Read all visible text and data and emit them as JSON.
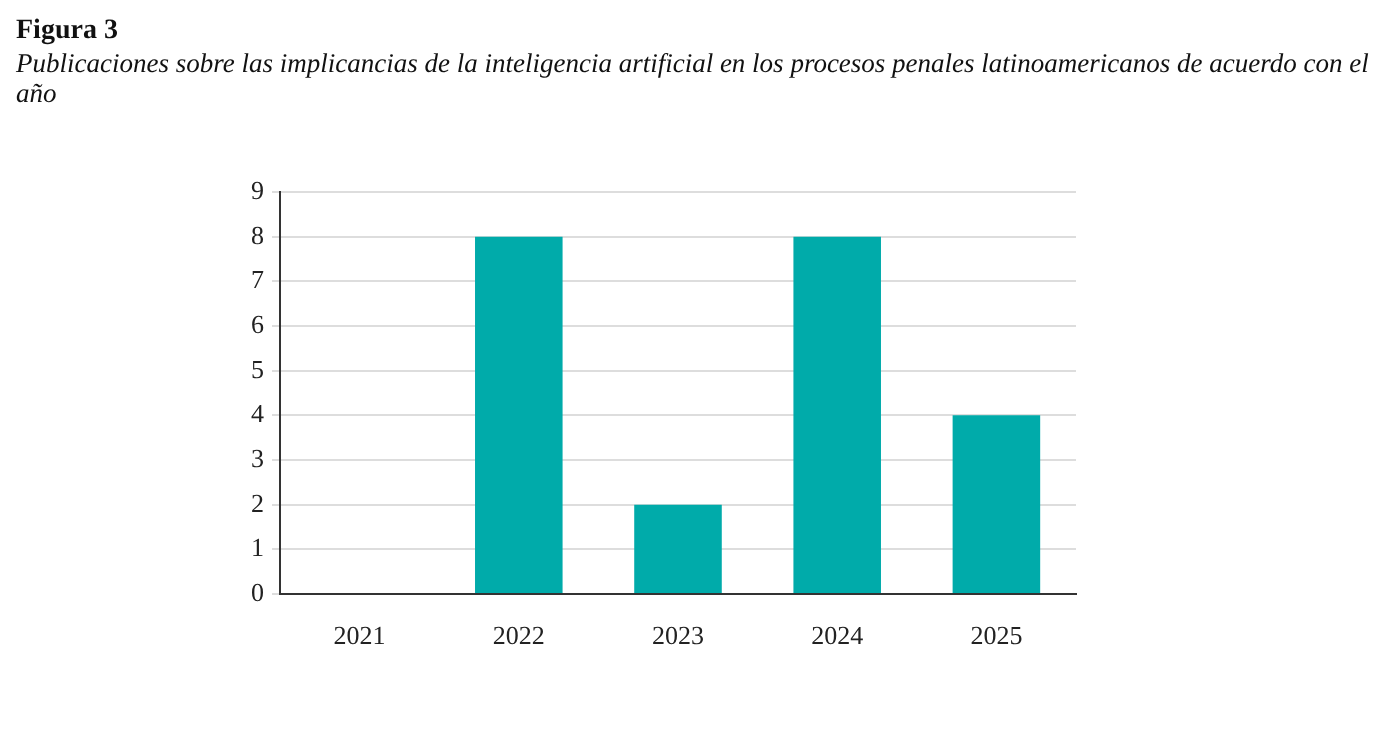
{
  "chart_data": {
    "type": "bar",
    "title": "Figura 3",
    "subtitle": "Publicaciones sobre las implicancias de la inteligencia artificial en los procesos penales latinoamericanos de acuerdo con el año",
    "categories": [
      "2021",
      "2022",
      "2023",
      "2024",
      "2025"
    ],
    "values": [
      0,
      8,
      2,
      8,
      4
    ],
    "color": "#00abaa",
    "ylim": [
      0,
      9
    ],
    "yticks": [
      0,
      1,
      2,
      3,
      4,
      5,
      6,
      7,
      8,
      9
    ],
    "grid": "y",
    "legend": false
  }
}
